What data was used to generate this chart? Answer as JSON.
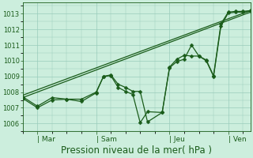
{
  "bg_color": "#cceedd",
  "grid_color": "#99ccbb",
  "line_color": "#1a5c1a",
  "xlabel": "Pression niveau de la mer( hPa )",
  "xlabel_fontsize": 8.5,
  "ylim": [
    1005.5,
    1013.7
  ],
  "yticks": [
    1006,
    1007,
    1008,
    1009,
    1010,
    1011,
    1012,
    1013
  ],
  "xtick_labels": [
    "| Mar",
    "| Sam",
    "| Jeu",
    "| Ven"
  ],
  "xtick_positions": [
    16,
    80,
    160,
    224
  ],
  "xlim": [
    0,
    248
  ],
  "smooth_series": [
    [
      [
        0,
        1007.8
      ],
      [
        248,
        1013.2
      ]
    ],
    [
      [
        0,
        1007.65
      ],
      [
        248,
        1013.1
      ]
    ]
  ],
  "marker_series": [
    [
      [
        0,
        1007.7
      ],
      [
        16,
        1007.1
      ],
      [
        32,
        1007.65
      ],
      [
        48,
        1007.55
      ],
      [
        64,
        1007.55
      ],
      [
        80,
        1008.0
      ],
      [
        88,
        1009.0
      ],
      [
        96,
        1009.1
      ],
      [
        104,
        1008.5
      ],
      [
        112,
        1008.3
      ],
      [
        120,
        1008.05
      ],
      [
        128,
        1008.05
      ],
      [
        136,
        1006.1
      ],
      [
        152,
        1006.7
      ],
      [
        160,
        1009.55
      ],
      [
        168,
        1009.95
      ],
      [
        176,
        1010.1
      ],
      [
        184,
        1011.0
      ],
      [
        192,
        1010.3
      ],
      [
        200,
        1010.05
      ],
      [
        208,
        1009.05
      ],
      [
        216,
        1012.35
      ],
      [
        224,
        1013.1
      ],
      [
        232,
        1013.15
      ],
      [
        240,
        1013.15
      ],
      [
        248,
        1013.2
      ]
    ],
    [
      [
        0,
        1007.6
      ],
      [
        16,
        1007.0
      ],
      [
        32,
        1007.5
      ],
      [
        48,
        1007.55
      ],
      [
        64,
        1007.4
      ],
      [
        80,
        1007.95
      ],
      [
        88,
        1009.0
      ],
      [
        96,
        1009.05
      ],
      [
        104,
        1008.3
      ],
      [
        112,
        1008.05
      ],
      [
        120,
        1007.85
      ],
      [
        128,
        1006.05
      ],
      [
        136,
        1006.75
      ],
      [
        152,
        1006.7
      ],
      [
        160,
        1009.6
      ],
      [
        168,
        1010.1
      ],
      [
        176,
        1010.35
      ],
      [
        184,
        1010.3
      ],
      [
        192,
        1010.3
      ],
      [
        200,
        1010.0
      ],
      [
        208,
        1009.0
      ],
      [
        216,
        1012.2
      ],
      [
        224,
        1013.05
      ],
      [
        232,
        1013.1
      ],
      [
        240,
        1013.1
      ],
      [
        248,
        1013.15
      ]
    ]
  ],
  "marker_size": 2.5,
  "linewidth": 0.9,
  "ytick_fontsize": 6,
  "xtick_fontsize": 6.5
}
